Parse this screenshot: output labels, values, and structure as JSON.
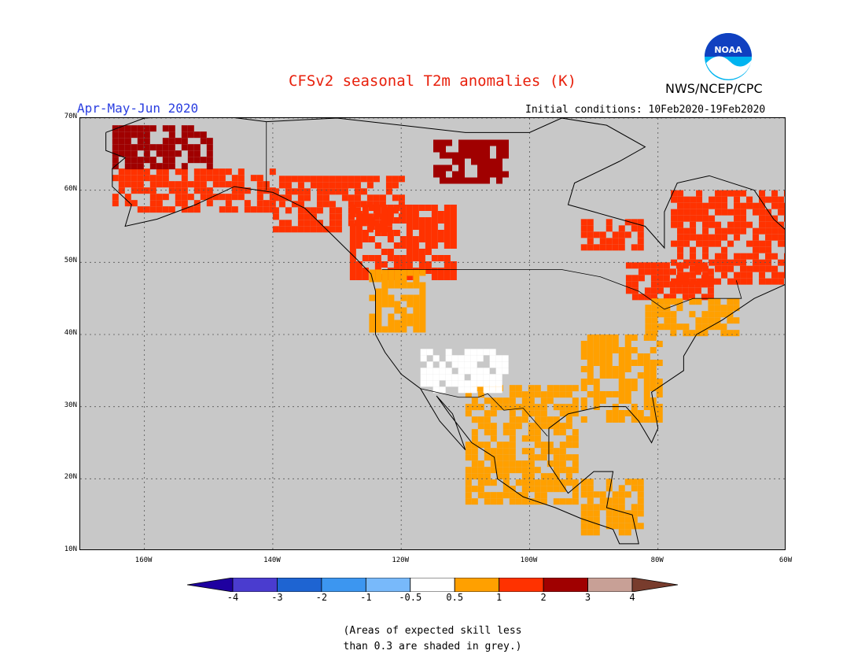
{
  "header": {
    "title": "CFSv2 seasonal T2m anomalies (K)",
    "org": "NWS/NCEP/CPC",
    "season": "Apr-May-Jun 2020",
    "initial_conditions": "Initial conditions: 10Feb2020-19Feb2020",
    "logo_text": "NOAA"
  },
  "map": {
    "lon_range": [
      -170,
      -60
    ],
    "lat_range": [
      10,
      70
    ],
    "lat_labels": [
      "70N",
      "60N",
      "50N",
      "40N",
      "30N",
      "20N",
      "10N"
    ],
    "lat_values": [
      70,
      60,
      50,
      40,
      30,
      20,
      10
    ],
    "lon_labels": [
      "160W",
      "140W",
      "120W",
      "100W",
      "80W",
      "60W"
    ],
    "lon_values": [
      -160,
      -140,
      -120,
      -100,
      -80,
      -60
    ],
    "skill_mask_color": "#c8c8c8",
    "anomaly_colors": {
      "neutral": "#ffffff",
      "0.5_to_1": "#ffa000",
      "1_to_2": "#ff3200",
      "2_to_3": "#a00000"
    },
    "regions": [
      {
        "name": "alaska-coast-warm",
        "level": 2,
        "lon": [
          -165,
          -140
        ],
        "lat": [
          57,
          63
        ]
      },
      {
        "name": "alaska-north-hot",
        "level": 3,
        "lon": [
          -165,
          -150
        ],
        "lat": [
          63,
          69
        ]
      },
      {
        "name": "yukon-warm",
        "level": 2,
        "lon": [
          -140,
          -120
        ],
        "lat": [
          55,
          62
        ]
      },
      {
        "name": "bc-alberta-warm",
        "level": 2,
        "lon": [
          -128,
          -112
        ],
        "lat": [
          48,
          58
        ]
      },
      {
        "name": "nwt-hot",
        "level": 3,
        "lon": [
          -115,
          -104
        ],
        "lat": [
          61,
          67
        ]
      },
      {
        "name": "quebec-labrador-warm",
        "level": 2,
        "lon": [
          -78,
          -60
        ],
        "lat": [
          47,
          60
        ]
      },
      {
        "name": "hudson-bay-west-warm",
        "level": 2,
        "lon": [
          -92,
          -83
        ],
        "lat": [
          52,
          56
        ]
      },
      {
        "name": "great-lakes-warm",
        "level": 2,
        "lon": [
          -85,
          -72
        ],
        "lat": [
          45,
          50
        ]
      },
      {
        "name": "pacific-northwest-mild",
        "level": 1,
        "lon": [
          -125,
          -117
        ],
        "lat": [
          41,
          49
        ]
      },
      {
        "name": "texas-mexico-mild",
        "level": 1,
        "lon": [
          -110,
          -93
        ],
        "lat": [
          17,
          33
        ]
      },
      {
        "name": "southeast-us-mild",
        "level": 1,
        "lon": [
          -92,
          -80
        ],
        "lat": [
          28,
          40
        ]
      },
      {
        "name": "northeast-us-mild",
        "level": 1,
        "lon": [
          -82,
          -68
        ],
        "lat": [
          40,
          45
        ]
      },
      {
        "name": "central-america-mild",
        "level": 1,
        "lon": [
          -92,
          -83
        ],
        "lat": [
          13,
          20
        ]
      },
      {
        "name": "southwest-us-neutral",
        "level": 0,
        "lon": [
          -117,
          -104
        ],
        "lat": [
          32,
          38
        ]
      }
    ]
  },
  "colorbar": {
    "labels": [
      "-4",
      "-3",
      "-2",
      "-1",
      "-0.5",
      "0.5",
      "1",
      "2",
      "3",
      "4"
    ],
    "colors": [
      "#1e00a0",
      "#4a3ccf",
      "#1e64d2",
      "#3c96f0",
      "#78b9fa",
      "#ffffff",
      "#ffa000",
      "#ff3200",
      "#a00000",
      "#c8a096",
      "#783c2d"
    ]
  },
  "footnote": {
    "line1": "(Areas of expected skill less",
    "line2": "than 0.3 are shaded in grey.)"
  }
}
